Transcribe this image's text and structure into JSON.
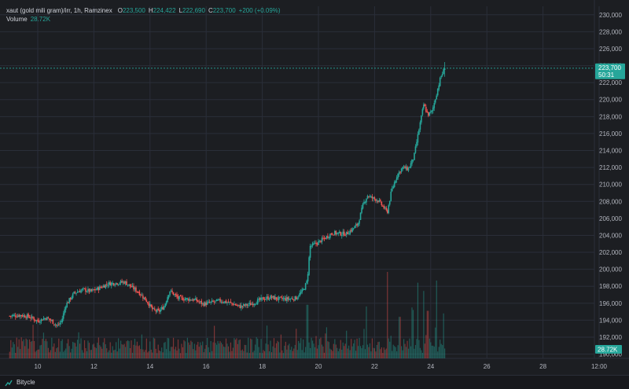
{
  "legend": {
    "symbol": "xaut (gold mili gram)/irr, 1h, Ramzinex",
    "open_key": "O",
    "open": "223,500",
    "high_key": "H",
    "high": "224,422",
    "low_key": "L",
    "low": "222,690",
    "close_key": "C",
    "close": "223,700",
    "change": "+200 (+0.09%)",
    "volume_label": "Volume",
    "volume_value": "28.72K"
  },
  "price_label": {
    "price": "223,700",
    "countdown": "50:31"
  },
  "volume_label_axis": "28.72K",
  "footer": {
    "brand": "Bitycle"
  },
  "colors": {
    "up": "#26a69a",
    "down": "#ef5350",
    "background": "#1c1e22",
    "grid": "#2a2e39",
    "text": "#d1d4dc"
  },
  "chart_data": {
    "type": "candlestick",
    "y_axis": {
      "ticks": [
        "190,000",
        "192,000",
        "194,000",
        "196,000",
        "198,000",
        "200,000",
        "202,000",
        "204,000",
        "206,000",
        "208,000",
        "210,000",
        "212,000",
        "214,000",
        "216,000",
        "218,000",
        "220,000",
        "222,000",
        "224,000",
        "226,000",
        "228,000",
        "230,000"
      ],
      "range": [
        189500,
        231000
      ]
    },
    "x_axis": {
      "ticks": [
        "10",
        "12",
        "14",
        "16",
        "18",
        "20",
        "22",
        "24",
        "26",
        "28",
        "12:00"
      ]
    },
    "last_price": 223700,
    "close_path": [
      {
        "d": 9.0,
        "p": 194500
      },
      {
        "d": 9.4,
        "p": 194600
      },
      {
        "d": 9.7,
        "p": 194400
      },
      {
        "d": 10.0,
        "p": 193900
      },
      {
        "d": 10.3,
        "p": 194300
      },
      {
        "d": 10.5,
        "p": 193900
      },
      {
        "d": 10.7,
        "p": 193300
      },
      {
        "d": 10.85,
        "p": 193900
      },
      {
        "d": 11.0,
        "p": 195800
      },
      {
        "d": 11.3,
        "p": 197200
      },
      {
        "d": 11.6,
        "p": 197600
      },
      {
        "d": 11.9,
        "p": 197400
      },
      {
        "d": 12.2,
        "p": 197800
      },
      {
        "d": 12.5,
        "p": 198300
      },
      {
        "d": 12.8,
        "p": 198400
      },
      {
        "d": 13.1,
        "p": 198500
      },
      {
        "d": 13.3,
        "p": 198000
      },
      {
        "d": 13.6,
        "p": 197300
      },
      {
        "d": 13.9,
        "p": 196200
      },
      {
        "d": 14.1,
        "p": 195200
      },
      {
        "d": 14.3,
        "p": 195000
      },
      {
        "d": 14.5,
        "p": 195600
      },
      {
        "d": 14.7,
        "p": 197500
      },
      {
        "d": 15.0,
        "p": 196600
      },
      {
        "d": 15.3,
        "p": 196500
      },
      {
        "d": 15.6,
        "p": 196400
      },
      {
        "d": 15.9,
        "p": 195900
      },
      {
        "d": 16.2,
        "p": 196100
      },
      {
        "d": 16.5,
        "p": 196300
      },
      {
        "d": 16.9,
        "p": 196000
      },
      {
        "d": 17.2,
        "p": 195600
      },
      {
        "d": 17.6,
        "p": 195900
      },
      {
        "d": 18.0,
        "p": 196500
      },
      {
        "d": 18.3,
        "p": 196700
      },
      {
        "d": 18.6,
        "p": 196500
      },
      {
        "d": 18.9,
        "p": 196500
      },
      {
        "d": 19.2,
        "p": 196600
      },
      {
        "d": 19.45,
        "p": 197500
      },
      {
        "d": 19.6,
        "p": 198600
      },
      {
        "d": 19.7,
        "p": 202700
      },
      {
        "d": 19.9,
        "p": 203000
      },
      {
        "d": 20.2,
        "p": 203600
      },
      {
        "d": 20.5,
        "p": 204300
      },
      {
        "d": 20.8,
        "p": 204200
      },
      {
        "d": 21.0,
        "p": 204200
      },
      {
        "d": 21.2,
        "p": 204700
      },
      {
        "d": 21.4,
        "p": 205300
      },
      {
        "d": 21.6,
        "p": 207700
      },
      {
        "d": 21.75,
        "p": 208700
      },
      {
        "d": 21.9,
        "p": 208400
      },
      {
        "d": 22.1,
        "p": 208200
      },
      {
        "d": 22.3,
        "p": 207400
      },
      {
        "d": 22.45,
        "p": 206700
      },
      {
        "d": 22.6,
        "p": 209200
      },
      {
        "d": 22.8,
        "p": 211100
      },
      {
        "d": 23.0,
        "p": 212000
      },
      {
        "d": 23.2,
        "p": 211800
      },
      {
        "d": 23.4,
        "p": 213200
      },
      {
        "d": 23.6,
        "p": 216800
      },
      {
        "d": 23.75,
        "p": 219400
      },
      {
        "d": 23.9,
        "p": 218200
      },
      {
        "d": 24.05,
        "p": 218600
      },
      {
        "d": 24.2,
        "p": 220600
      },
      {
        "d": 24.35,
        "p": 222600
      },
      {
        "d": 24.5,
        "p": 223700
      }
    ],
    "volume_spikes": [
      {
        "d": 19.6,
        "v": 0.62
      },
      {
        "d": 20.3,
        "v": 0.36
      },
      {
        "d": 21.0,
        "v": 0.32
      },
      {
        "d": 21.7,
        "v": 0.6
      },
      {
        "d": 22.45,
        "v": 1.0
      },
      {
        "d": 22.9,
        "v": 0.48
      },
      {
        "d": 23.35,
        "v": 0.56
      },
      {
        "d": 23.55,
        "v": 0.84
      },
      {
        "d": 23.75,
        "v": 0.78
      },
      {
        "d": 23.9,
        "v": 0.55
      },
      {
        "d": 24.2,
        "v": 0.9
      },
      {
        "d": 24.45,
        "v": 0.52
      }
    ]
  }
}
